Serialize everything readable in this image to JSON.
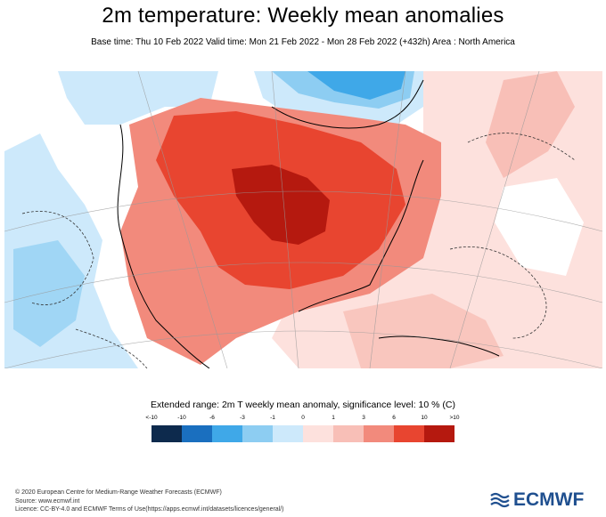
{
  "title": "2m temperature: Weekly mean anomalies",
  "subtitle": "Base time: Thu 10 Feb 2022 Valid time: Mon 21 Feb 2022 - Mon 28 Feb 2022 (+432h) Area : North America",
  "legend": {
    "title": "Extended range: 2m T weekly mean anomaly, significance level: 10 % (C)",
    "ticks": [
      "<-10",
      "-10",
      "-6",
      "-3",
      "-1",
      "0",
      "1",
      "3",
      "6",
      "10",
      ">10"
    ],
    "colors": [
      "#0d2a4d",
      "#1a6fbf",
      "#3fa8e8",
      "#8dcdf2",
      "#cde9fb",
      "#fde1dd",
      "#f8bfb7",
      "#f28a7c",
      "#e84530",
      "#b5190f",
      "#6b0a06"
    ]
  },
  "map_colors": {
    "ocean_bg": "#ffffff",
    "light_blue": "#cde9fb",
    "mid_blue": "#8dcdf2",
    "blue": "#3fa8e8",
    "light_red": "#fde1dd",
    "pink": "#f8bfb7",
    "salmon": "#f28a7c",
    "red": "#e84530",
    "dark_red": "#b5190f"
  },
  "footer": {
    "line1": "© 2020 European Centre for Medium-Range Weather Forecasts (ECMWF)",
    "line2": "Source: www.ecmwf.int",
    "line3": "Licence: CC-BY-4.0 and ECMWF Terms of Use(https://apps.ecmwf.int/datasets/licences/general/)"
  },
  "logo": {
    "text": "ECMWF",
    "color": "#1f4f8f",
    "icon": "ecmwf-wave-icon"
  }
}
